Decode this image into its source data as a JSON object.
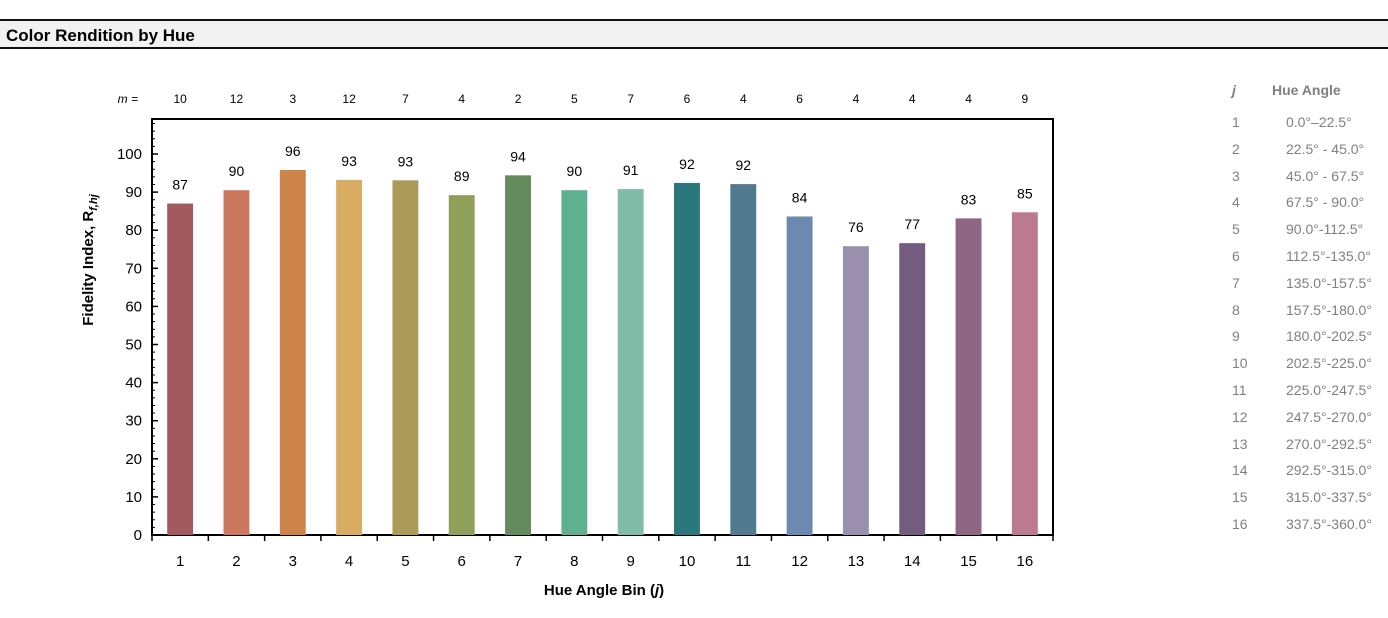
{
  "header": {
    "title": "Color Rendition by Hue"
  },
  "chart_data": {
    "type": "bar",
    "categories": [
      "1",
      "2",
      "3",
      "4",
      "5",
      "6",
      "7",
      "8",
      "9",
      "10",
      "11",
      "12",
      "13",
      "14",
      "15",
      "16"
    ],
    "values": [
      87,
      90.5,
      95.8,
      93.2,
      93.1,
      89.2,
      94.4,
      90.5,
      90.8,
      92.4,
      92.1,
      83.6,
      75.8,
      76.6,
      83.1,
      84.7
    ],
    "value_labels": [
      "87",
      "90",
      "96",
      "93",
      "93",
      "89",
      "94",
      "90",
      "91",
      "92",
      "92",
      "84",
      "76",
      "77",
      "83",
      "85"
    ],
    "m_label": "m =",
    "m_values": [
      "10",
      "12",
      "3",
      "12",
      "7",
      "4",
      "2",
      "5",
      "7",
      "6",
      "4",
      "6",
      "4",
      "4",
      "4",
      "9"
    ],
    "colors": [
      "#a35a5e",
      "#cc785f",
      "#cc8448",
      "#d8ac62",
      "#ab9a58",
      "#90a05b",
      "#658b5d",
      "#5fb08e",
      "#7fbda8",
      "#2a787b",
      "#527a8f",
      "#6e89b1",
      "#9a90ad",
      "#745c7e",
      "#8f6584",
      "#bc7a8f"
    ],
    "ylim": [
      0,
      100
    ],
    "yticks": [
      "0",
      "10",
      "20",
      "30",
      "40",
      "50",
      "60",
      "70",
      "80",
      "90",
      "100"
    ],
    "ylabel": "Fidelity Index, R",
    "ylabel_sub": "f,hj",
    "xlabel": "Hue Angle Bin (",
    "xlabel_var": "j",
    "xlabel_end": ")",
    "grid": false,
    "legend": "none"
  },
  "hue_table": {
    "col_j": "j",
    "col_angle": "Hue Angle",
    "rows": [
      {
        "j": "1",
        "angle": "0.0°–22.5°"
      },
      {
        "j": "2",
        "angle": "22.5° - 45.0°"
      },
      {
        "j": "3",
        "angle": "45.0° - 67.5°"
      },
      {
        "j": "4",
        "angle": "67.5° - 90.0°"
      },
      {
        "j": "5",
        "angle": "90.0°-112.5°"
      },
      {
        "j": "6",
        "angle": "112.5°-135.0°"
      },
      {
        "j": "7",
        "angle": "135.0°-157.5°"
      },
      {
        "j": "8",
        "angle": "157.5°-180.0°"
      },
      {
        "j": "9",
        "angle": "180.0°-202.5°"
      },
      {
        "j": "10",
        "angle": "202.5°-225.0°"
      },
      {
        "j": "11",
        "angle": "225.0°-247.5°"
      },
      {
        "j": "12",
        "angle": "247.5°-270.0°"
      },
      {
        "j": "13",
        "angle": "270.0°-292.5°"
      },
      {
        "j": "14",
        "angle": "292.5°-315.0°"
      },
      {
        "j": "15",
        "angle": "315.0°-337.5°"
      },
      {
        "j": "16",
        "angle": "337.5°-360.0°"
      }
    ]
  }
}
